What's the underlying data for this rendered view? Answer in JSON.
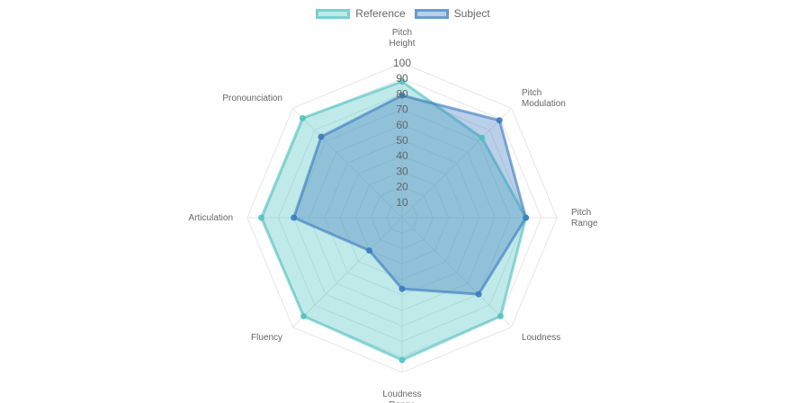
{
  "chart_data": {
    "type": "radar",
    "labels": [
      [
        "Pitch",
        "Height"
      ],
      [
        "Pitch",
        "Modulation"
      ],
      [
        "Pitch",
        "Range"
      ],
      [
        "Loudness"
      ],
      [
        "Loudness",
        "Range"
      ],
      [
        "Fluency"
      ],
      [
        "Articulation"
      ],
      [
        "Pronounciation"
      ]
    ],
    "r_ticks": [
      "10",
      "20",
      "30",
      "40",
      "50",
      "60",
      "70",
      "80",
      "90",
      "100"
    ],
    "rlim": [
      0,
      100
    ],
    "legend_position": "top",
    "series": [
      {
        "name": "Reference",
        "values": [
          88,
          73,
          80,
          90,
          92,
          90,
          91,
          91
        ],
        "fill": "rgba(75, 192, 192, 0.35)",
        "stroke": "rgba(75, 192, 192, 0.6)",
        "point": "rgba(75, 192, 192, 0.8)"
      },
      {
        "name": "Subject",
        "values": [
          79,
          89,
          80,
          70,
          46,
          30,
          70,
          74
        ],
        "fill": "rgba(54, 120, 190, 0.35)",
        "stroke": "rgba(54, 120, 190, 0.6)",
        "point": "rgba(54, 120, 190, 0.8)"
      }
    ]
  }
}
